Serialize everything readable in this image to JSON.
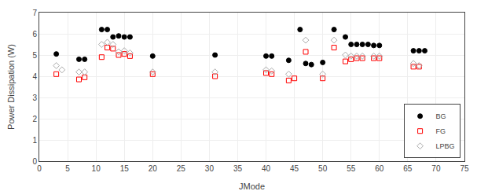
{
  "chart_data": {
    "type": "scatter",
    "xlabel": "JMode",
    "ylabel": "Power Dissipation (W)",
    "xlim": [
      0,
      75
    ],
    "ylim": [
      0,
      7
    ],
    "xticks": [
      0,
      5,
      10,
      15,
      20,
      25,
      30,
      35,
      40,
      45,
      50,
      55,
      60,
      65,
      70,
      75
    ],
    "yticks": [
      0,
      1,
      2,
      3,
      4,
      5,
      6,
      7
    ],
    "grid": true,
    "legend": "lower right",
    "series": [
      {
        "name": "BG",
        "color": "black",
        "marker": "circle",
        "x": [
          3,
          7,
          8,
          11,
          12,
          13,
          14,
          15,
          16,
          20,
          31,
          40,
          41,
          44,
          46,
          47,
          48,
          50,
          52,
          54,
          55,
          56,
          57,
          58,
          59,
          60,
          66,
          67,
          68
        ],
        "values": [
          5.05,
          4.8,
          4.8,
          6.2,
          6.2,
          5.85,
          5.9,
          5.85,
          5.85,
          4.95,
          5.0,
          4.95,
          4.95,
          4.75,
          6.2,
          4.6,
          4.55,
          4.65,
          6.2,
          5.85,
          5.5,
          5.5,
          5.5,
          5.5,
          5.45,
          5.45,
          5.2,
          5.2,
          5.2
        ]
      },
      {
        "name": "FG",
        "color": "red",
        "marker": "square-open",
        "x": [
          3,
          7,
          8,
          11,
          12,
          13,
          14,
          15,
          16,
          20,
          31,
          40,
          41,
          44,
          45,
          47,
          50,
          52,
          54,
          55,
          56,
          57,
          59,
          60,
          66,
          67
        ],
        "values": [
          4.1,
          3.85,
          3.95,
          4.9,
          5.35,
          5.3,
          5.0,
          5.05,
          4.95,
          4.1,
          4.0,
          4.15,
          4.1,
          3.8,
          3.9,
          5.15,
          3.9,
          5.35,
          4.7,
          4.8,
          4.85,
          4.85,
          4.85,
          4.85,
          4.45,
          4.45
        ]
      },
      {
        "name": "LPBG",
        "color": "#aaaaaa",
        "marker": "diamond-open",
        "x": [
          3,
          4,
          7,
          8,
          11,
          12,
          13,
          14,
          15,
          16,
          20,
          31,
          40,
          41,
          44,
          47,
          50,
          52,
          54,
          55,
          56,
          57,
          59,
          60,
          66,
          67
        ],
        "values": [
          4.5,
          4.3,
          4.2,
          4.2,
          5.5,
          5.6,
          5.5,
          5.15,
          5.2,
          5.1,
          4.2,
          4.2,
          4.3,
          4.25,
          4.1,
          5.7,
          4.1,
          5.7,
          5.0,
          4.95,
          4.95,
          4.95,
          4.95,
          4.95,
          4.6,
          4.5
        ]
      }
    ]
  }
}
